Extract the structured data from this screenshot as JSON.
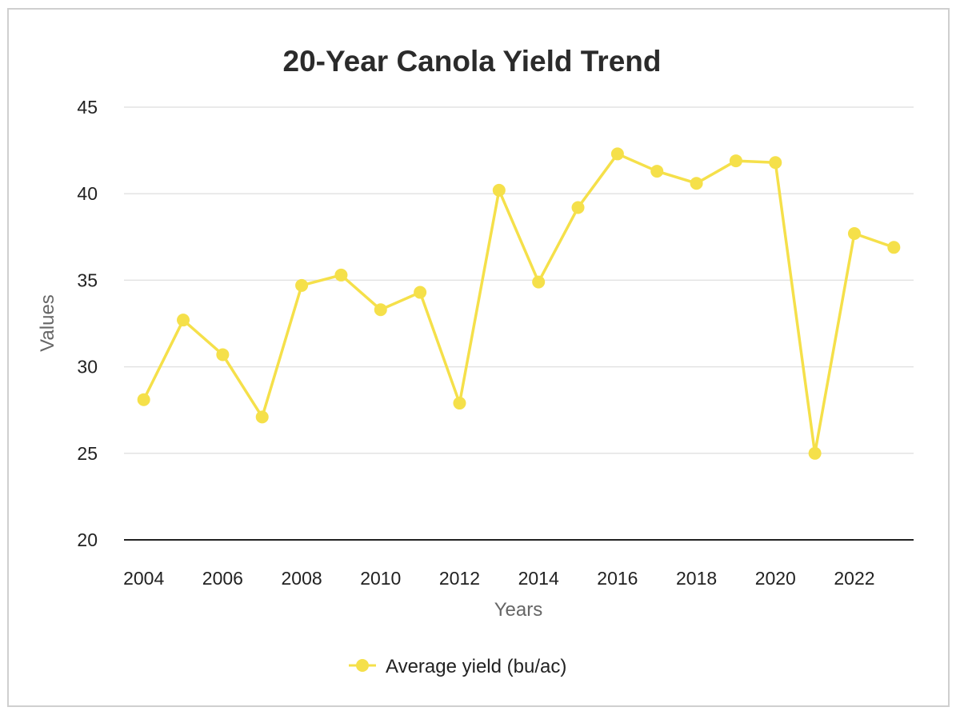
{
  "colors": {
    "series": "#f5e04a",
    "grid": "#e3e3e3",
    "axis": "#222222",
    "frame": "#cfcfcf"
  },
  "chart_data": {
    "type": "line",
    "title": "20-Year Canola Yield Trend",
    "xlabel": "Years",
    "ylabel": "Values",
    "ylim": [
      20,
      45
    ],
    "yticks": [
      20,
      25,
      30,
      35,
      40,
      45
    ],
    "xticks": [
      2004,
      2006,
      2008,
      2010,
      2012,
      2014,
      2016,
      2018,
      2020,
      2022
    ],
    "grid": true,
    "legend_position": "bottom",
    "x": [
      2004,
      2005,
      2006,
      2007,
      2008,
      2009,
      2010,
      2011,
      2012,
      2013,
      2014,
      2015,
      2016,
      2017,
      2018,
      2019,
      2020,
      2021,
      2022,
      2023
    ],
    "series": [
      {
        "name": "Average yield (bu/ac)",
        "color": "#f5e04a",
        "values": [
          28.1,
          32.7,
          30.7,
          27.1,
          34.7,
          35.3,
          33.3,
          34.3,
          27.9,
          40.2,
          34.9,
          39.2,
          42.3,
          41.3,
          40.6,
          41.9,
          41.8,
          25.0,
          37.7,
          36.9
        ]
      }
    ]
  }
}
